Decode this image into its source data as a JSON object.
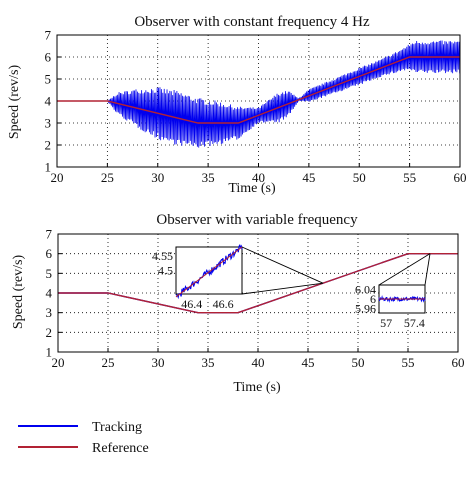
{
  "colors": {
    "tracking": "#0000ee",
    "reference": "#b22234",
    "axis": "#000000",
    "grid": "#000000"
  },
  "legend": {
    "placement": "bottom-left",
    "entries": [
      {
        "label": "Tracking",
        "color": "#0000ee"
      },
      {
        "label": "Reference",
        "color": "#b22234"
      }
    ]
  },
  "chart_data": [
    {
      "type": "line",
      "title": "Observer with constant frequency 4 Hz",
      "xlabel": "Time (s)",
      "ylabel": "Speed (rev/s)",
      "xlim": [
        20,
        60
      ],
      "ylim": [
        1,
        7
      ],
      "xticks": [
        "20",
        "25",
        "30",
        "35",
        "40",
        "45",
        "50",
        "55",
        "60"
      ],
      "yticks": [
        "1",
        "2",
        "3",
        "4",
        "5",
        "6",
        "7"
      ],
      "grid": true,
      "series": [
        {
          "name": "Reference",
          "color": "#b22234",
          "x": [
            20,
            25,
            34,
            38,
            55,
            60
          ],
          "y": [
            4,
            4,
            3,
            3,
            6,
            6
          ]
        },
        {
          "name": "Tracking",
          "color": "#0000ee",
          "oscillation_envelope": {
            "x": [
              25,
              26,
              28,
              30,
              32,
              34,
              36,
              38,
              40,
              42,
              43,
              44,
              45,
              48,
              50,
              52,
              54,
              55,
              55.5,
              60
            ],
            "half_amplitude": [
              0,
              0.5,
              0.9,
              1.2,
              1.25,
              1.15,
              1.0,
              0.75,
              0.35,
              0.7,
              0.6,
              0.05,
              0.3,
              0.35,
              0.4,
              0.4,
              0.5,
              0.6,
              0.75,
              0.75
            ]
          }
        }
      ]
    },
    {
      "type": "line",
      "title": "Observer with variable frequency",
      "xlabel": "Time (s)",
      "ylabel": "Speed (rev/s)",
      "xlim": [
        20,
        60
      ],
      "ylim": [
        1,
        7
      ],
      "xticks": [
        "20",
        "25",
        "30",
        "35",
        "40",
        "45",
        "50",
        "55",
        "60"
      ],
      "yticks": [
        "1",
        "2",
        "3",
        "4",
        "5",
        "6",
        "7"
      ],
      "grid": true,
      "series": [
        {
          "name": "Reference",
          "color": "#b22234",
          "x": [
            20,
            25,
            34,
            38,
            55,
            60
          ],
          "y": [
            4,
            4,
            3,
            3,
            6,
            6
          ]
        },
        {
          "name": "Tracking",
          "color": "#0000ee",
          "x": [
            20,
            25,
            34,
            38,
            55,
            60
          ],
          "y": [
            4,
            4,
            3,
            3,
            6,
            6
          ]
        }
      ],
      "insets": [
        {
          "zoom_point": [
            46.5,
            4.5
          ],
          "xlim": [
            46.3,
            46.72
          ],
          "ylim": [
            4.42,
            4.58
          ],
          "xticks": [
            "46.4",
            "46.6"
          ],
          "yticks": [
            "4.55",
            "4.5"
          ],
          "reference": {
            "x": [
              46.3,
              46.72
            ],
            "y": [
              4.41,
              4.58
            ]
          },
          "noise": 0.012
        },
        {
          "zoom_point": [
            57.2,
            6
          ],
          "xlim": [
            56.9,
            57.55
          ],
          "ylim": [
            5.94,
            6.06
          ],
          "xticks": [
            "57",
            "57.4"
          ],
          "yticks": [
            "6.04",
            "6",
            "5.96"
          ],
          "reference": {
            "x": [
              56.9,
              57.55
            ],
            "y": [
              6,
              6
            ]
          },
          "noise": 0.008
        }
      ]
    }
  ]
}
